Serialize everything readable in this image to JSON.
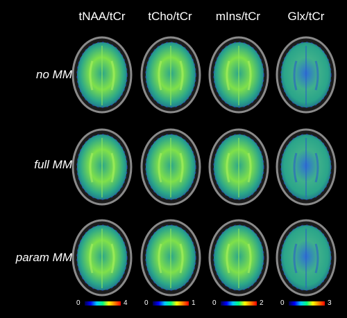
{
  "columns": [
    "tNAA/tCr",
    "tCho/tCr",
    "mIns/tCr",
    "Glx/tCr"
  ],
  "rows": [
    "no MM",
    "full MM",
    "param MM"
  ],
  "colorbars": [
    {
      "min": "0",
      "max": "4"
    },
    {
      "min": "0",
      "max": "1"
    },
    {
      "min": "0",
      "max": "2"
    },
    {
      "min": "0",
      "max": "3"
    }
  ],
  "colors": {
    "background": "#000000",
    "text": "#ffffff",
    "skull": "#8a8a8a",
    "map_base": "#2aa58a",
    "map_high": "#7fe04a",
    "map_low": "#2e6fd6"
  },
  "icons": [
    "brain-map-image",
    "colorbar-jet"
  ]
}
